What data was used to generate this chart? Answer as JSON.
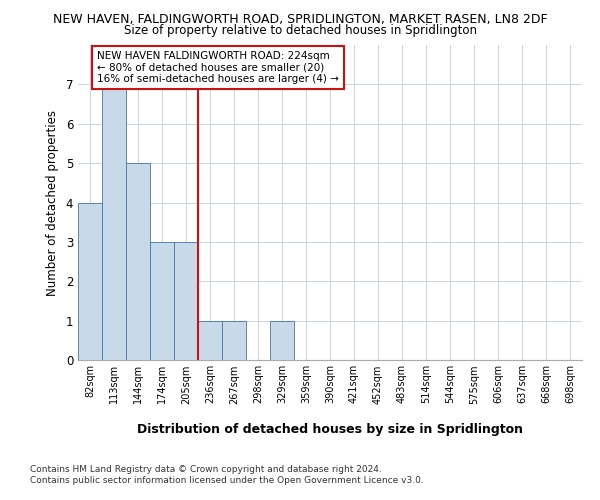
{
  "title1": "NEW HAVEN, FALDINGWORTH ROAD, SPRIDLINGTON, MARKET RASEN, LN8 2DF",
  "title2": "Size of property relative to detached houses in Spridlington",
  "xlabel": "Distribution of detached houses by size in Spridlington",
  "ylabel": "Number of detached properties",
  "categories": [
    "82sqm",
    "113sqm",
    "144sqm",
    "174sqm",
    "205sqm",
    "236sqm",
    "267sqm",
    "298sqm",
    "329sqm",
    "359sqm",
    "390sqm",
    "421sqm",
    "452sqm",
    "483sqm",
    "514sqm",
    "544sqm",
    "575sqm",
    "606sqm",
    "637sqm",
    "668sqm",
    "698sqm"
  ],
  "values": [
    4,
    7,
    5,
    3,
    3,
    1,
    1,
    0,
    1,
    0,
    0,
    0,
    0,
    0,
    0,
    0,
    0,
    0,
    0,
    0,
    0
  ],
  "bar_color": "#c8daea",
  "bar_edge_color": "#4477aa",
  "ref_line_x": 4.5,
  "ref_line_color": "#cc1111",
  "annotation_text": "NEW HAVEN FALDINGWORTH ROAD: 224sqm\n← 80% of detached houses are smaller (20)\n16% of semi-detached houses are larger (4) →",
  "annotation_box_color": "#ffffff",
  "annotation_box_edge_color": "#cc1111",
  "ylim": [
    0,
    8
  ],
  "yticks": [
    0,
    1,
    2,
    3,
    4,
    5,
    6,
    7,
    8
  ],
  "footer1": "Contains HM Land Registry data © Crown copyright and database right 2024.",
  "footer2": "Contains public sector information licensed under the Open Government Licence v3.0.",
  "bg_color": "#ffffff",
  "plot_bg_color": "#ffffff",
  "grid_color": "#c8d4e0"
}
